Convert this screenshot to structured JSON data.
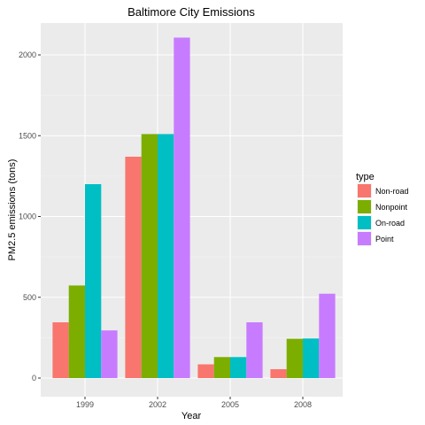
{
  "chart_data": {
    "type": "bar",
    "title": "Baltimore City Emissions",
    "xlabel": "Year",
    "ylabel": "PM2.5 emissions (tons)",
    "categories": [
      "1999",
      "2002",
      "2005",
      "2008"
    ],
    "ylim": [
      0,
      2200
    ],
    "yticks": [
      0,
      500,
      1000,
      1500,
      2000
    ],
    "grid": true,
    "legend": {
      "title": "type",
      "position": "right"
    },
    "series": [
      {
        "name": "Non-road",
        "color": "#F8766D",
        "values": [
          345,
          1370,
          85,
          55
        ]
      },
      {
        "name": "Nonpoint",
        "color": "#7CAE00",
        "values": [
          573,
          1510,
          130,
          243
        ]
      },
      {
        "name": "On-road",
        "color": "#00BFC4",
        "values": [
          1200,
          1510,
          130,
          245
        ]
      },
      {
        "name": "Point",
        "color": "#C77CFF",
        "values": [
          295,
          2107,
          345,
          522
        ]
      }
    ]
  }
}
